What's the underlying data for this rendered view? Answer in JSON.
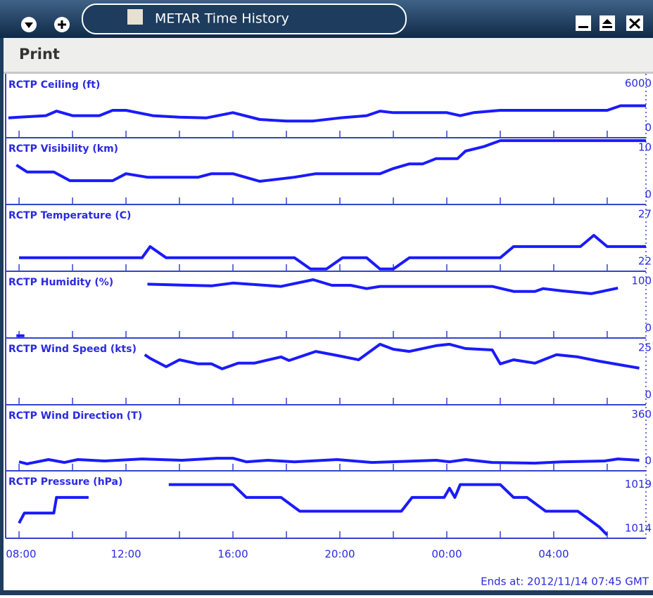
{
  "window": {
    "title": "METAR Time History"
  },
  "menu": [
    "Print"
  ],
  "xlim": [
    -0.45,
    23.45
  ],
  "xticks": [
    {
      "value": 0,
      "label": "08:00"
    },
    {
      "value": 4,
      "label": "12:00"
    },
    {
      "value": 8,
      "label": "16:00"
    },
    {
      "value": 12,
      "label": "20:00"
    },
    {
      "value": 16,
      "label": "00:00"
    },
    {
      "value": 20,
      "label": "04:00"
    }
  ],
  "minor_xticks": [
    0,
    2,
    4,
    6,
    8,
    10,
    12,
    14,
    16,
    18,
    20,
    22
  ],
  "line_color": "#1a1aff",
  "panels": [
    {
      "title": "RCTP Ceiling (ft)",
      "ylim": [
        -1200,
        7200
      ],
      "yticks": [
        6000,
        0
      ],
      "x": [
        -0.4,
        0,
        1,
        1.4,
        2,
        3,
        3.5,
        4,
        5,
        6,
        7,
        8,
        9,
        10,
        11,
        12,
        13,
        13.5,
        14,
        16,
        16.5,
        17,
        18,
        22,
        22.5,
        23.45
      ],
      "values": [
        1400,
        1500,
        1700,
        2300,
        1700,
        1700,
        2400,
        2400,
        1700,
        1500,
        1400,
        2100,
        1200,
        1000,
        1000,
        1400,
        1700,
        2300,
        2100,
        2100,
        1700,
        2100,
        2400,
        2400,
        3000,
        3000
      ]
    },
    {
      "title": "RCTP Visibility (km)",
      "ylim": [
        -1,
        10.5
      ],
      "yticks": [
        10,
        0
      ],
      "x": [
        -0.1,
        0,
        0.3,
        1.3,
        1.9,
        3.5,
        4,
        4.8,
        6.7,
        7.2,
        8,
        9,
        10.3,
        11.1,
        13.5,
        14,
        14.6,
        15.1,
        15.6,
        16.4,
        16.7,
        17.4,
        18,
        23.45
      ],
      "values": [
        5.8,
        5.5,
        4.6,
        4.6,
        3.1,
        3.1,
        4.3,
        3.7,
        3.7,
        4.3,
        4.3,
        3.0,
        3.7,
        4.3,
        4.3,
        5.2,
        6.0,
        6.0,
        6.9,
        6.9,
        8.2,
        9.0,
        10,
        10
      ]
    },
    {
      "title": "RCTP Temperature (C)",
      "ylim": [
        21.8,
        27.75
      ],
      "yticks": [
        27,
        22
      ],
      "x": [
        0,
        4.6,
        4.9,
        5.5,
        10.3,
        10.9,
        11.5,
        12.1,
        13,
        13.5,
        14,
        14.6,
        18,
        18.5,
        21,
        21.5,
        22,
        23.45
      ],
      "values": [
        23,
        23,
        24,
        23,
        23,
        22,
        22,
        23,
        23,
        22,
        22,
        23,
        23,
        24,
        24,
        25,
        24,
        24
      ]
    },
    {
      "title": "RCTP Humidity (%)",
      "ylim": [
        -4,
        115
      ],
      "yticks": [
        100,
        0
      ],
      "x": [
        -0.1,
        0.2,
        2.5,
        4.8,
        7.2,
        8,
        9.8,
        11,
        11.7,
        12.4,
        13,
        13.5,
        17.7,
        18.5,
        19.3,
        19.6,
        20.3,
        21.4,
        21.9,
        22.4
      ],
      "values": [
        0,
        0,
        null,
        92,
        89,
        94,
        88,
        100,
        90,
        90,
        84,
        88,
        88,
        79,
        79,
        84,
        80,
        75,
        80,
        85
      ]
    },
    {
      "title": "RCTP Wind Speed (kts)",
      "ylim": [
        -0.3,
        27.6
      ],
      "yticks": [
        25,
        0
      ],
      "x": [
        4.7,
        4.9,
        5.5,
        6,
        6.7,
        7.2,
        7.6,
        8.2,
        8.8,
        9.8,
        10.1,
        11.1,
        11.9,
        12.7,
        13.5,
        14,
        14.6,
        15.6,
        16.1,
        16.7,
        17.7,
        18,
        18.5,
        19.3,
        20.1,
        20.9,
        21.7,
        23.2
      ],
      "values": [
        20.6,
        19.1,
        15.6,
        18.5,
        16.8,
        16.8,
        14.7,
        17.1,
        17.1,
        19.7,
        18.2,
        22,
        20.3,
        18.5,
        25,
        22.9,
        22,
        24.4,
        25,
        23.2,
        22.6,
        16.8,
        18.5,
        17.1,
        20.6,
        19.7,
        17.9,
        15
      ]
    },
    {
      "title": "RCTP Wind Direction (T)",
      "ylim": [
        -51,
        432
      ],
      "yticks": [
        360,
        0
      ],
      "x": [
        0,
        0.3,
        1.1,
        1.7,
        2.2,
        3.2,
        4.6,
        6.1,
        7.4,
        8,
        8.5,
        9.3,
        10.3,
        11.9,
        13.2,
        15.6,
        16.1,
        16.7,
        17.7,
        19.3,
        20.3,
        21.9,
        22.4,
        23.2
      ],
      "values": [
        15,
        0,
        31,
        10,
        31,
        21,
        36,
        26,
        41,
        41,
        15,
        26,
        15,
        31,
        10,
        26,
        15,
        31,
        10,
        5,
        15,
        21,
        36,
        26
      ]
    },
    {
      "title": "RCTP Pressure (hPa)",
      "ylim": [
        1013.15,
        1020.5
      ],
      "yticks": [
        1019,
        1014
      ],
      "x": [
        0,
        0.2,
        1.3,
        1.4,
        2.6,
        4,
        5.6,
        8,
        8.5,
        9.8,
        10.5,
        14.3,
        14.7,
        15.9,
        16.1,
        16.3,
        16.5,
        18,
        18.5,
        19,
        19.7,
        20.9,
        21.7,
        22
      ],
      "values": [
        1014.8,
        1015.9,
        1015.9,
        1017.6,
        1017.6,
        null,
        1019,
        1019,
        1017.6,
        1017.6,
        1016.1,
        1016.1,
        1017.6,
        1017.6,
        1018.6,
        1017.6,
        1019,
        1019,
        1017.6,
        1017.6,
        1016.1,
        1016.1,
        1014.4,
        1013.5
      ]
    }
  ],
  "footer": "Ends at: 2012/11/14 07:45 GMT"
}
